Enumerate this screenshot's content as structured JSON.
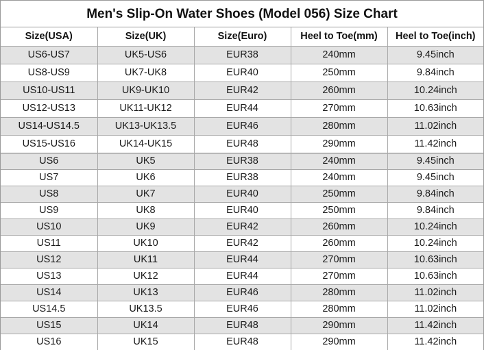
{
  "title": "Men's Slip-On Water Shoes (Model 056) Size Chart",
  "headers": [
    "Size(USA)",
    "Size(UK)",
    "Size(Euro)",
    "Heel to Toe(mm)",
    "Heel to Toe(inch)"
  ],
  "range_rows": [
    [
      "US6-US7",
      "UK5-US6",
      "EUR38",
      "240mm",
      "9.45inch"
    ],
    [
      "US8-US9",
      "UK7-UK8",
      "EUR40",
      "250mm",
      "9.84inch"
    ],
    [
      "US10-US11",
      "UK9-UK10",
      "EUR42",
      "260mm",
      "10.24inch"
    ],
    [
      "US12-US13",
      "UK11-UK12",
      "EUR44",
      "270mm",
      "10.63inch"
    ],
    [
      "US14-US14.5",
      "UK13-UK13.5",
      "EUR46",
      "280mm",
      "11.02inch"
    ],
    [
      "US15-US16",
      "UK14-UK15",
      "EUR48",
      "290mm",
      "11.42inch"
    ]
  ],
  "single_rows": [
    [
      "US6",
      "UK5",
      "EUR38",
      "240mm",
      "9.45inch"
    ],
    [
      "US7",
      "UK6",
      "EUR38",
      "240mm",
      "9.45inch"
    ],
    [
      "US8",
      "UK7",
      "EUR40",
      "250mm",
      "9.84inch"
    ],
    [
      "US9",
      "UK8",
      "EUR40",
      "250mm",
      "9.84inch"
    ],
    [
      "US10",
      "UK9",
      "EUR42",
      "260mm",
      "10.24inch"
    ],
    [
      "US11",
      "UK10",
      "EUR42",
      "260mm",
      "10.24inch"
    ],
    [
      "US12",
      "UK11",
      "EUR44",
      "270mm",
      "10.63inch"
    ],
    [
      "US13",
      "UK12",
      "EUR44",
      "270mm",
      "10.63inch"
    ],
    [
      "US14",
      "UK13",
      "EUR46",
      "280mm",
      "11.02inch"
    ],
    [
      "US14.5",
      "UK13.5",
      "EUR46",
      "280mm",
      "11.02inch"
    ],
    [
      "US15",
      "UK14",
      "EUR48",
      "290mm",
      "11.42inch"
    ],
    [
      "US16",
      "UK15",
      "EUR48",
      "290mm",
      "11.42inch"
    ]
  ],
  "colors": {
    "shaded_row": "#e3e3e3",
    "plain_row": "#ffffff",
    "border": "#a8a8a8"
  }
}
